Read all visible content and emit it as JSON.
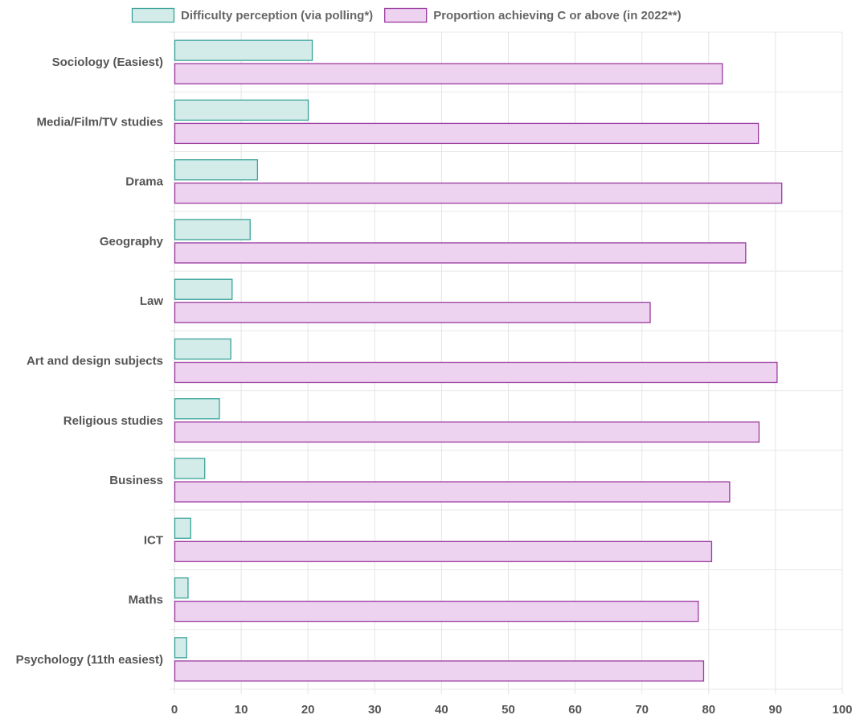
{
  "chart_data": {
    "type": "bar",
    "orientation": "horizontal",
    "categories": [
      "Sociology (Easiest)",
      "Media/Film/TV studies",
      "Drama",
      "Geography",
      "Law",
      "Art and design subjects",
      "Religious studies",
      "Business",
      "ICT",
      "Maths",
      "Psychology (11th easiest)"
    ],
    "series": [
      {
        "name": "Difficulty perception (via polling*)",
        "color": "#3aa39a",
        "fill": "#d3ece9",
        "values": [
          20.7,
          20.1,
          12.5,
          11.4,
          8.7,
          8.5,
          6.8,
          4.6,
          2.5,
          2.1,
          1.9
        ]
      },
      {
        "name": "Proportion achieving C or above (in 2022**)",
        "color": "#9a3a9f",
        "fill": "#edd3ef",
        "values": [
          82.1,
          87.5,
          91.0,
          85.6,
          71.3,
          90.3,
          87.6,
          83.2,
          80.5,
          78.5,
          79.3
        ]
      }
    ],
    "xlim": [
      0,
      100
    ],
    "xticks": [
      0,
      10,
      20,
      30,
      40,
      50,
      60,
      70,
      80,
      90,
      100
    ],
    "grid": true,
    "legend": "top"
  }
}
